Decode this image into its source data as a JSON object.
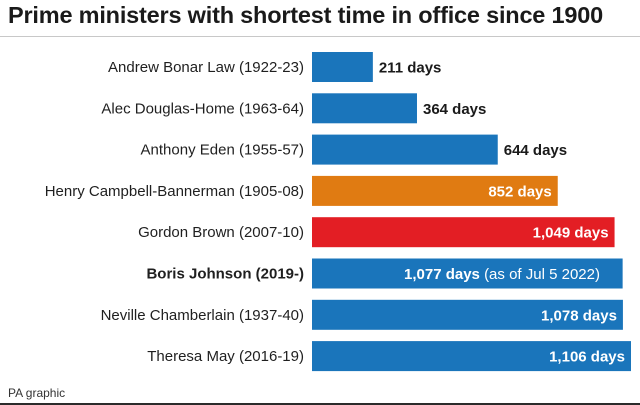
{
  "chart_data": {
    "type": "bar",
    "orientation": "horizontal",
    "title": "Prime ministers with shortest time in office since 1900",
    "categories": [
      "Andrew Bonar Law (1922-23)",
      "Alec Douglas-Home (1963-64)",
      "Anthony Eden (1955-57)",
      "Henry Campbell-Bannerman (1905-08)",
      "Gordon Brown (2007-10)",
      "Boris Johnson (2019-)",
      "Neville Chamberlain (1937-40)",
      "Theresa May (2016-19)"
    ],
    "values": [
      211,
      364,
      644,
      852,
      1049,
      1077,
      1078,
      1106
    ],
    "value_labels": [
      "211 days",
      "364 days",
      "644 days",
      "852 days",
      "1,049 days",
      "1,077 days",
      "1,078 days",
      "1,106 days"
    ],
    "annotations": [
      {
        "category": "Boris Johnson (2019-)",
        "text": "(as of Jul 5 2022)"
      }
    ],
    "highlight_category": "Boris Johnson (2019-)",
    "bar_colors": [
      "#1a75bb",
      "#1a75bb",
      "#1a75bb",
      "#e07b12",
      "#e31e24",
      "#1a75bb",
      "#1a75bb",
      "#1a75bb"
    ],
    "xlim": [
      0,
      1106
    ],
    "grid": false,
    "legend": "none"
  },
  "source": "PA graphic"
}
